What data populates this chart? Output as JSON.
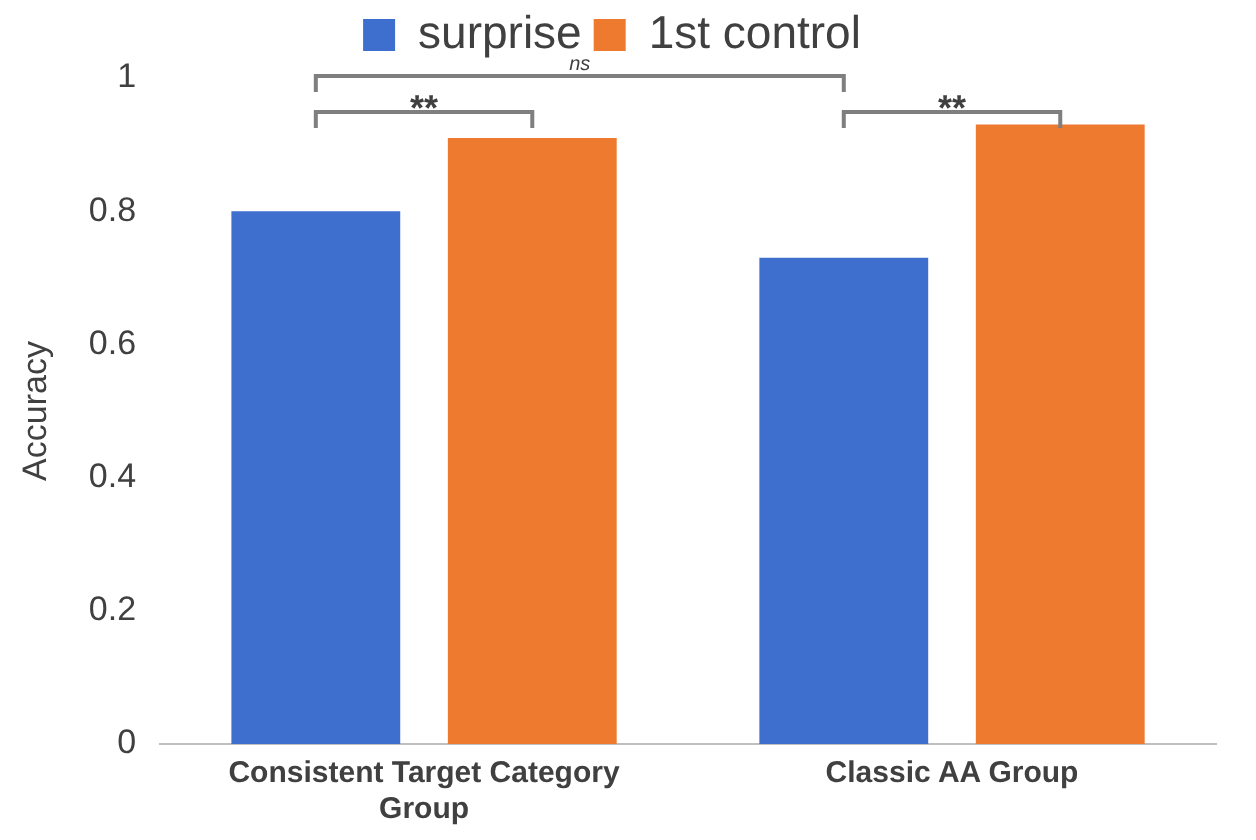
{
  "chart_data": {
    "type": "bar",
    "categories": [
      "Consistent Target Category Group",
      "Classic AA Group"
    ],
    "ylabel": "Accuracy",
    "ylim": [
      0,
      1
    ],
    "yticks": [
      0,
      {
        "value": 0.2,
        "label": "0.2"
      },
      {
        "value": 0.4,
        "label": "0.4"
      },
      {
        "value": 0.6,
        "label": "0.6"
      },
      {
        "value": 0.8,
        "label": "0.8"
      },
      1
    ],
    "grid": false,
    "legend": "top",
    "series": [
      {
        "name": "surprise",
        "color": "#3f6fce",
        "values": [
          0.8,
          0.73
        ]
      },
      {
        "name": "1st control",
        "color": "#ee7a30",
        "values": [
          0.91,
          0.93
        ]
      }
    ],
    "annotations": [
      "**",
      "ns",
      "**"
    ]
  }
}
